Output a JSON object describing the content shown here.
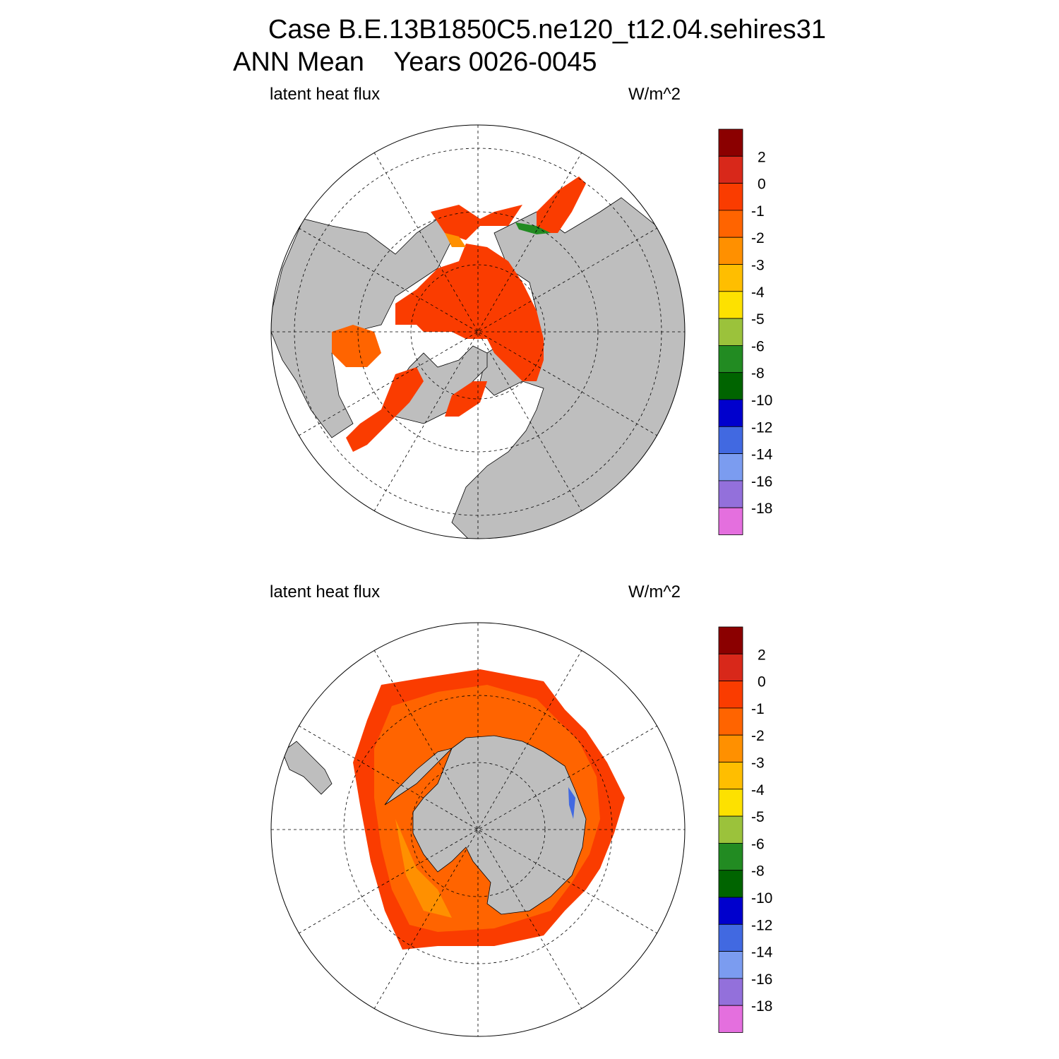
{
  "header": {
    "case_line": "Case B.E.13B1850C5.ne120_t12.04.sehires31",
    "period_line": "ANN Mean    Years 0026-0045"
  },
  "panels": [
    {
      "id": "north",
      "left_label": "latent heat flux",
      "units": "W/m^2",
      "hemisphere": "north"
    },
    {
      "id": "south",
      "left_label": "latent heat flux",
      "units": "W/m^2",
      "hemisphere": "south"
    }
  ],
  "colorbar": {
    "labels": [
      "2",
      "0",
      "-1",
      "-2",
      "-3",
      "-4",
      "-5",
      "-6",
      "-8",
      "-10",
      "-12",
      "-14",
      "-16",
      "-18"
    ],
    "colors": [
      "#8b0000",
      "#d8281a",
      "#fa3c00",
      "#ff6400",
      "#ff9000",
      "#ffbe00",
      "#fde100",
      "#9bc23b",
      "#228b22",
      "#006400",
      "#0000cd",
      "#4169e1",
      "#7b9cf0",
      "#9370db",
      "#e46fde"
    ]
  },
  "colors": {
    "land": "#bebebe",
    "ocean": "#ffffff",
    "ice_main": "#fa3c00",
    "ice_edge": "#ff6400",
    "ice_inner": "#ff9000"
  }
}
